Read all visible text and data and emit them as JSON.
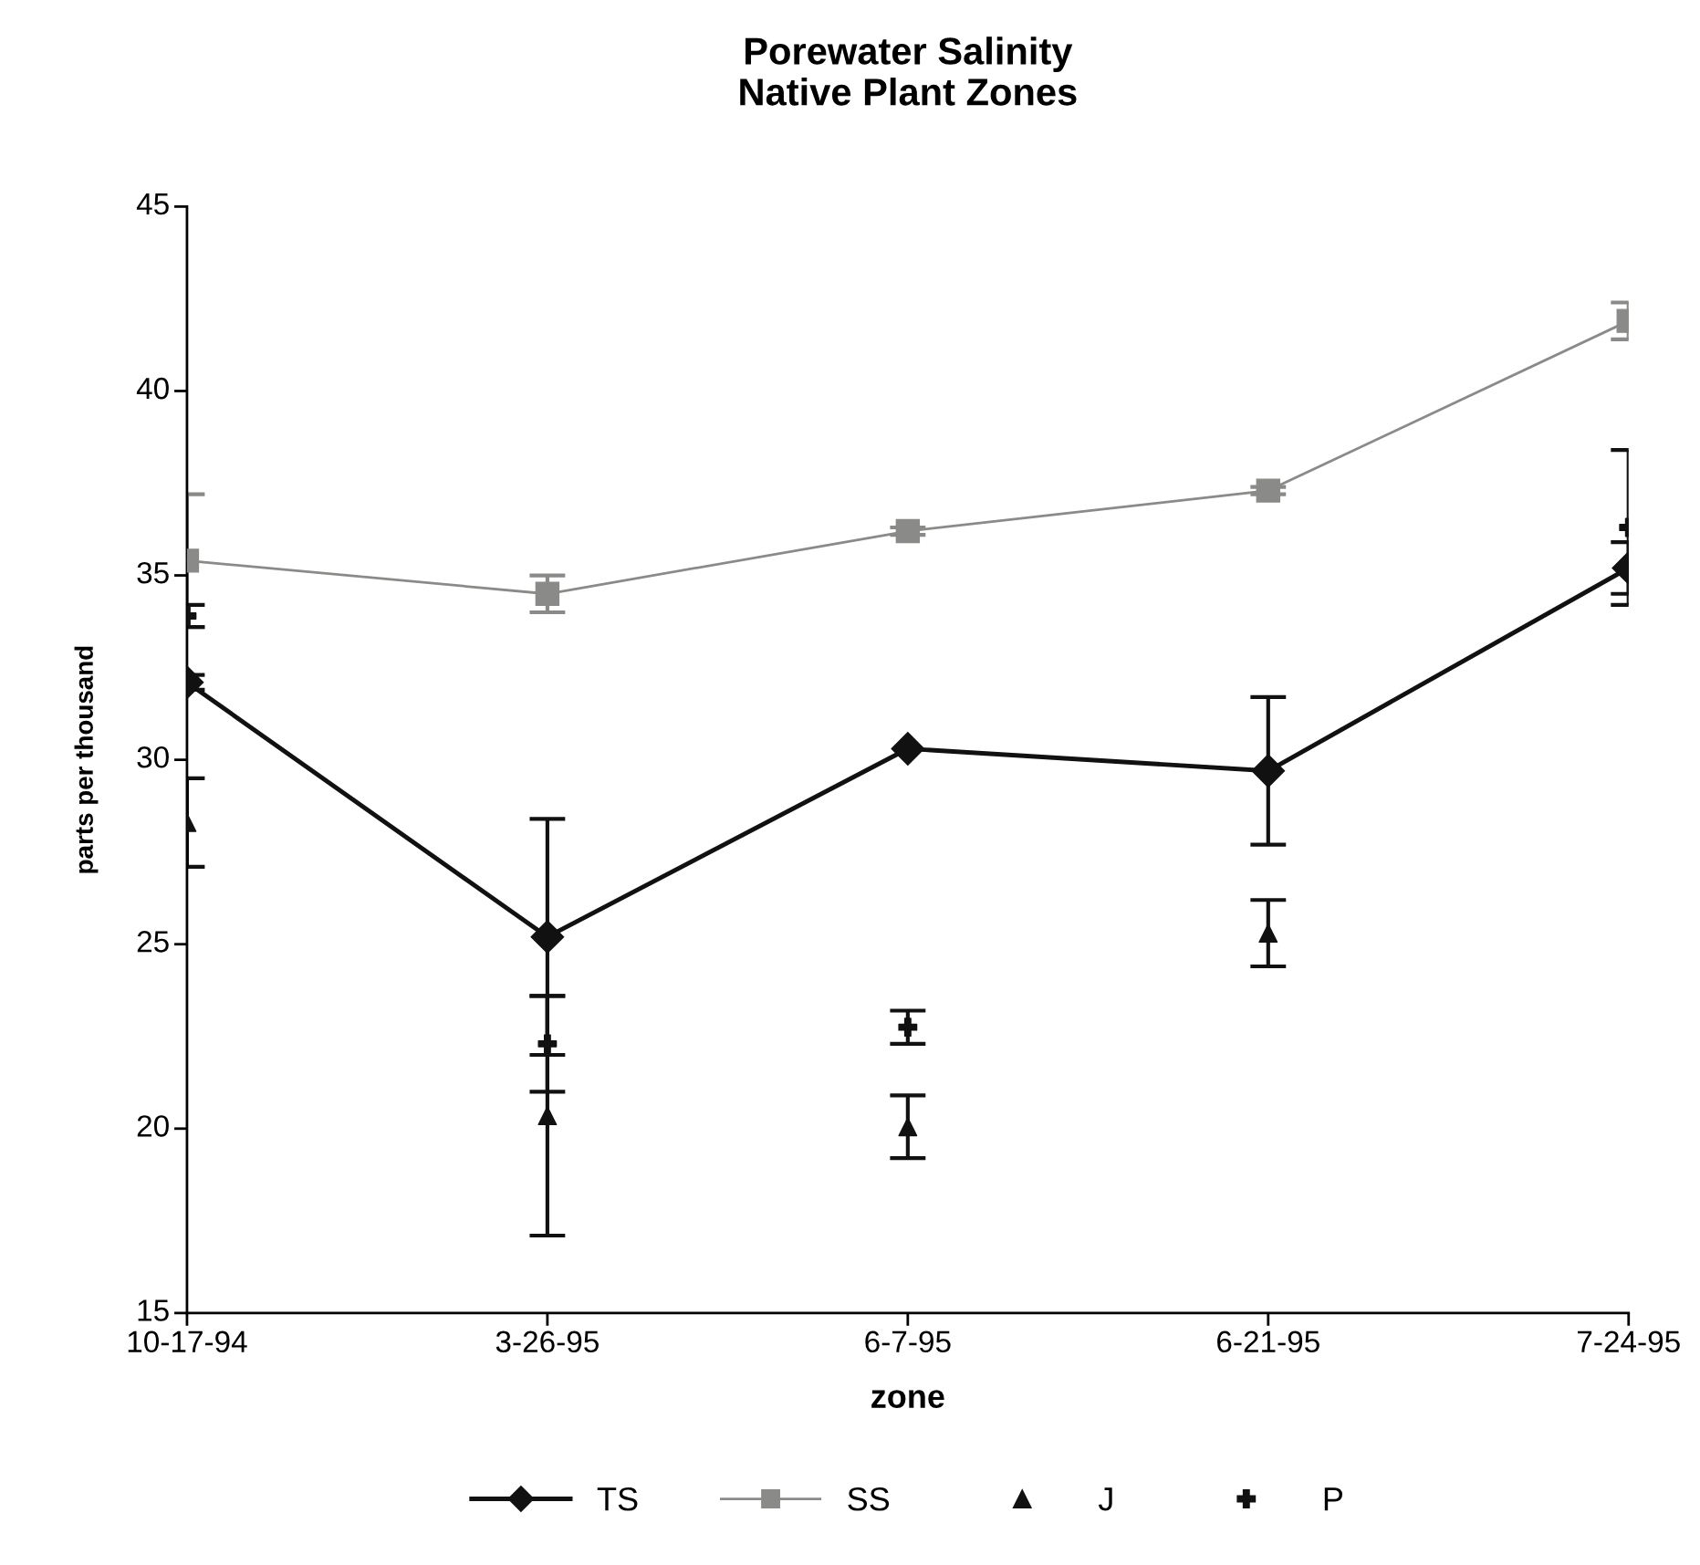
{
  "chart_data": {
    "type": "line",
    "title": "Porewater Salinity\nNative Plant Zones",
    "xlabel": "zone",
    "ylabel": "parts per thousand",
    "categories": [
      "10-17-94",
      "3-26-95",
      "6-7-95",
      "6-21-95",
      "7-24-95"
    ],
    "ylim": [
      15,
      45
    ],
    "yticks": [
      15,
      20,
      25,
      30,
      35,
      40,
      45
    ],
    "grid": false,
    "legend": "bottom",
    "series": [
      {
        "name": "TS",
        "color": "#111111",
        "marker": "diamond",
        "line_style": "solid",
        "values": [
          32.1,
          25.2,
          30.3,
          29.7,
          35.2
        ],
        "errors": [
          0.2,
          3.2,
          null,
          2.0,
          0.7
        ]
      },
      {
        "name": "SS",
        "color": "#8a8a88",
        "marker": "square",
        "line_style": "solid",
        "values": [
          35.4,
          34.5,
          36.2,
          37.3,
          41.9
        ],
        "errors": [
          1.8,
          0.5,
          0.1,
          0.1,
          0.5
        ]
      },
      {
        "name": "J",
        "type": "scatter",
        "color": "#111111",
        "marker": "triangle",
        "values": [
          28.3,
          20.35,
          20.05,
          25.3,
          null
        ],
        "errors": [
          1.2,
          3.25,
          0.85,
          0.9,
          null
        ]
      },
      {
        "name": "P",
        "type": "scatter",
        "color": "#111111",
        "marker": "cross",
        "values": [
          33.9,
          22.3,
          22.75,
          null,
          36.3
        ],
        "errors": [
          0.3,
          1.3,
          0.45,
          null,
          2.1
        ]
      }
    ]
  }
}
